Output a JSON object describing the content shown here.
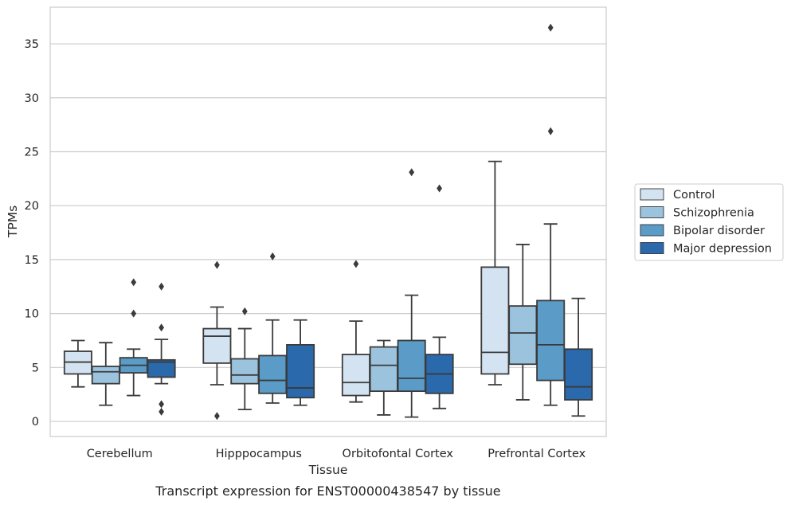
{
  "chart_data": {
    "type": "boxplot",
    "caption": "Transcript expression for ENST00000438547 by tissue",
    "xlabel": "Tissue",
    "ylabel": "TPMs",
    "ylim": [
      -1.4,
      38.4
    ],
    "yticks": [
      0,
      5,
      10,
      15,
      20,
      25,
      30,
      35
    ],
    "grid": "horizontal",
    "legend_position": "right",
    "categories": [
      "Cerebellum",
      "Hipppocampus",
      "Orbitofontal Cortex",
      "Prefrontal Cortex"
    ],
    "series": [
      {
        "name": "Control",
        "color": "#d4e3f1",
        "boxes": [
          {
            "whisker_low": 3.2,
            "q1": 4.4,
            "median": 5.5,
            "q3": 6.5,
            "whisker_high": 7.5,
            "outliers": []
          },
          {
            "whisker_low": 3.4,
            "q1": 5.4,
            "median": 7.9,
            "q3": 8.6,
            "whisker_high": 10.6,
            "outliers": [
              14.5,
              0.5
            ]
          },
          {
            "whisker_low": 1.8,
            "q1": 2.4,
            "median": 3.6,
            "q3": 6.2,
            "whisker_high": 9.3,
            "outliers": [
              14.6
            ]
          },
          {
            "whisker_low": 3.4,
            "q1": 4.4,
            "median": 6.4,
            "q3": 14.3,
            "whisker_high": 24.1,
            "outliers": []
          }
        ]
      },
      {
        "name": "Schizophrenia",
        "color": "#9cc3de",
        "boxes": [
          {
            "whisker_low": 1.5,
            "q1": 3.5,
            "median": 4.6,
            "q3": 5.1,
            "whisker_high": 7.3,
            "outliers": []
          },
          {
            "whisker_low": 1.1,
            "q1": 3.5,
            "median": 4.3,
            "q3": 5.8,
            "whisker_high": 8.6,
            "outliers": [
              10.2
            ]
          },
          {
            "whisker_low": 0.6,
            "q1": 2.8,
            "median": 5.2,
            "q3": 6.9,
            "whisker_high": 7.5,
            "outliers": []
          },
          {
            "whisker_low": 2.0,
            "q1": 5.3,
            "median": 8.2,
            "q3": 10.7,
            "whisker_high": 16.4,
            "outliers": []
          }
        ]
      },
      {
        "name": "Bipolar disorder",
        "color": "#5a9bc7",
        "boxes": [
          {
            "whisker_low": 2.4,
            "q1": 4.5,
            "median": 5.2,
            "q3": 5.9,
            "whisker_high": 6.7,
            "outliers": [
              12.9,
              10.0
            ]
          },
          {
            "whisker_low": 1.7,
            "q1": 2.6,
            "median": 3.8,
            "q3": 6.1,
            "whisker_high": 9.4,
            "outliers": [
              15.3
            ]
          },
          {
            "whisker_low": 0.4,
            "q1": 2.8,
            "median": 4.0,
            "q3": 7.5,
            "whisker_high": 11.7,
            "outliers": [
              23.1
            ]
          },
          {
            "whisker_low": 1.5,
            "q1": 3.8,
            "median": 7.1,
            "q3": 11.2,
            "whisker_high": 18.3,
            "outliers": [
              36.5,
              26.9
            ]
          }
        ]
      },
      {
        "name": "Major depression",
        "color": "#2a69ac",
        "boxes": [
          {
            "whisker_low": 3.5,
            "q1": 4.1,
            "median": 5.5,
            "q3": 5.7,
            "whisker_high": 7.6,
            "outliers": [
              12.5,
              8.7,
              1.6,
              0.9
            ]
          },
          {
            "whisker_low": 1.5,
            "q1": 2.2,
            "median": 3.1,
            "q3": 7.1,
            "whisker_high": 9.4,
            "outliers": []
          },
          {
            "whisker_low": 1.2,
            "q1": 2.6,
            "median": 4.4,
            "q3": 6.2,
            "whisker_high": 7.8,
            "outliers": [
              21.6
            ]
          },
          {
            "whisker_low": 0.5,
            "q1": 2.0,
            "median": 3.2,
            "q3": 6.7,
            "whisker_high": 11.4,
            "outliers": []
          }
        ]
      }
    ]
  }
}
